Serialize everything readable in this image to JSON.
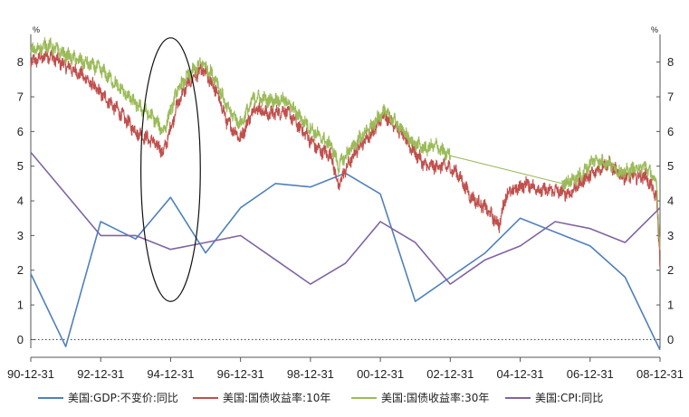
{
  "chart_data": {
    "type": "line",
    "y_unit": "%",
    "ylim": [
      -0.25,
      8.8
    ],
    "y_ticks": [
      0,
      1,
      2,
      3,
      4,
      5,
      6,
      7,
      8
    ],
    "x_tick_labels": [
      "90-12-31",
      "92-12-31",
      "94-12-31",
      "96-12-31",
      "98-12-31",
      "00-12-31",
      "02-12-31",
      "04-12-31",
      "06-12-31",
      "08-12-31"
    ],
    "x_tick_years": [
      1990,
      1992,
      1994,
      1996,
      1998,
      2000,
      2002,
      2004,
      2006,
      2008
    ],
    "xlim": [
      1990.0,
      2008.0
    ],
    "zero_line": true,
    "legend_position": "bottom",
    "highlight_ellipse": {
      "x_center": 1994.0,
      "y_center": 4.9,
      "x_radius": 0.85,
      "y_radius": 3.8
    },
    "series": [
      {
        "name": "美国:GDP:不变价:同比",
        "color": "#4f81bd",
        "style": "annual",
        "x": [
          1990.0,
          1991.0,
          1992.0,
          1993.0,
          1994.0,
          1995.0,
          1996.0,
          1997.0,
          1998.0,
          1999.0,
          2000.0,
          2001.0,
          2002.0,
          2003.0,
          2004.0,
          2005.0,
          2006.0,
          2007.0,
          2008.0
        ],
        "y": [
          1.9,
          -0.2,
          3.4,
          2.9,
          4.1,
          2.5,
          3.8,
          4.5,
          4.4,
          4.8,
          4.2,
          1.1,
          1.8,
          2.5,
          3.5,
          3.1,
          2.7,
          1.8,
          -0.3
        ]
      },
      {
        "name": "美国:国债收益率:10年",
        "color": "#c0504d",
        "style": "noisy",
        "x": [
          1990.0,
          1990.5,
          1991.0,
          1991.5,
          1992.0,
          1992.5,
          1993.0,
          1993.5,
          1993.8,
          1994.2,
          1994.5,
          1994.9,
          1995.3,
          1995.6,
          1996.0,
          1996.4,
          1996.8,
          1997.3,
          1997.8,
          1998.2,
          1998.6,
          1998.8,
          1999.0,
          1999.4,
          1999.8,
          2000.1,
          2000.5,
          2000.9,
          2001.3,
          2001.6,
          2001.9,
          2002.2,
          2002.6,
          2003.0,
          2003.4,
          2003.6,
          2003.8,
          2004.2,
          2004.6,
          2005.0,
          2005.4,
          2005.8,
          2006.1,
          2006.5,
          2006.9,
          2007.2,
          2007.6,
          2007.9,
          2008.0
        ],
        "y": [
          8.0,
          8.2,
          7.9,
          7.6,
          7.1,
          6.6,
          6.0,
          5.7,
          5.4,
          6.8,
          7.4,
          7.8,
          7.2,
          6.3,
          5.8,
          6.7,
          6.5,
          6.6,
          6.0,
          5.5,
          5.3,
          4.4,
          4.9,
          5.6,
          6.0,
          6.5,
          6.1,
          5.5,
          5.0,
          5.0,
          5.0,
          4.8,
          4.1,
          3.8,
          3.3,
          4.2,
          4.3,
          4.5,
          4.3,
          4.3,
          4.2,
          4.6,
          4.8,
          5.1,
          4.7,
          4.7,
          4.7,
          4.1,
          2.2
        ]
      },
      {
        "name": "美国:国债收益率:30年",
        "color": "#9bbb59",
        "style": "noisy",
        "x": [
          1990.0,
          1990.5,
          1991.0,
          1991.5,
          1992.0,
          1992.5,
          1993.0,
          1993.5,
          1993.8,
          1994.2,
          1994.5,
          1994.9,
          1995.3,
          1995.6,
          1996.0,
          1996.4,
          1996.8,
          1997.3,
          1997.8,
          1998.2,
          1998.6,
          1998.8,
          1999.0,
          1999.4,
          1999.8,
          2000.1,
          2000.5,
          2000.9,
          2001.3,
          2001.6,
          2001.8,
          2002.0,
          2005.2,
          2005.5,
          2005.8,
          2006.1,
          2006.5,
          2006.9,
          2007.2,
          2007.6,
          2007.9,
          2008.0
        ],
        "y": [
          8.3,
          8.5,
          8.2,
          8.0,
          7.8,
          7.3,
          6.8,
          6.4,
          6.0,
          7.2,
          7.6,
          8.0,
          7.5,
          6.7,
          6.2,
          7.0,
          6.9,
          6.9,
          6.3,
          5.9,
          5.6,
          5.0,
          5.3,
          5.8,
          6.2,
          6.6,
          6.2,
          5.7,
          5.5,
          5.6,
          5.4,
          5.3,
          4.5,
          4.6,
          4.8,
          5.2,
          5.1,
          4.8,
          4.9,
          5.0,
          4.5,
          2.7
        ]
      },
      {
        "name": "美国:CPI:同比",
        "color": "#8064a2",
        "style": "annual",
        "x": [
          1990.0,
          1991.0,
          1992.0,
          1993.0,
          1994.0,
          1995.0,
          1996.0,
          1997.0,
          1998.0,
          1999.0,
          2000.0,
          2001.0,
          2002.0,
          2003.0,
          2004.0,
          2005.0,
          2006.0,
          2007.0,
          2008.0
        ],
        "y": [
          5.4,
          4.2,
          3.0,
          3.0,
          2.6,
          2.8,
          3.0,
          2.3,
          1.6,
          2.2,
          3.4,
          2.8,
          1.6,
          2.3,
          2.7,
          3.4,
          3.2,
          2.8,
          3.8
        ]
      }
    ]
  }
}
